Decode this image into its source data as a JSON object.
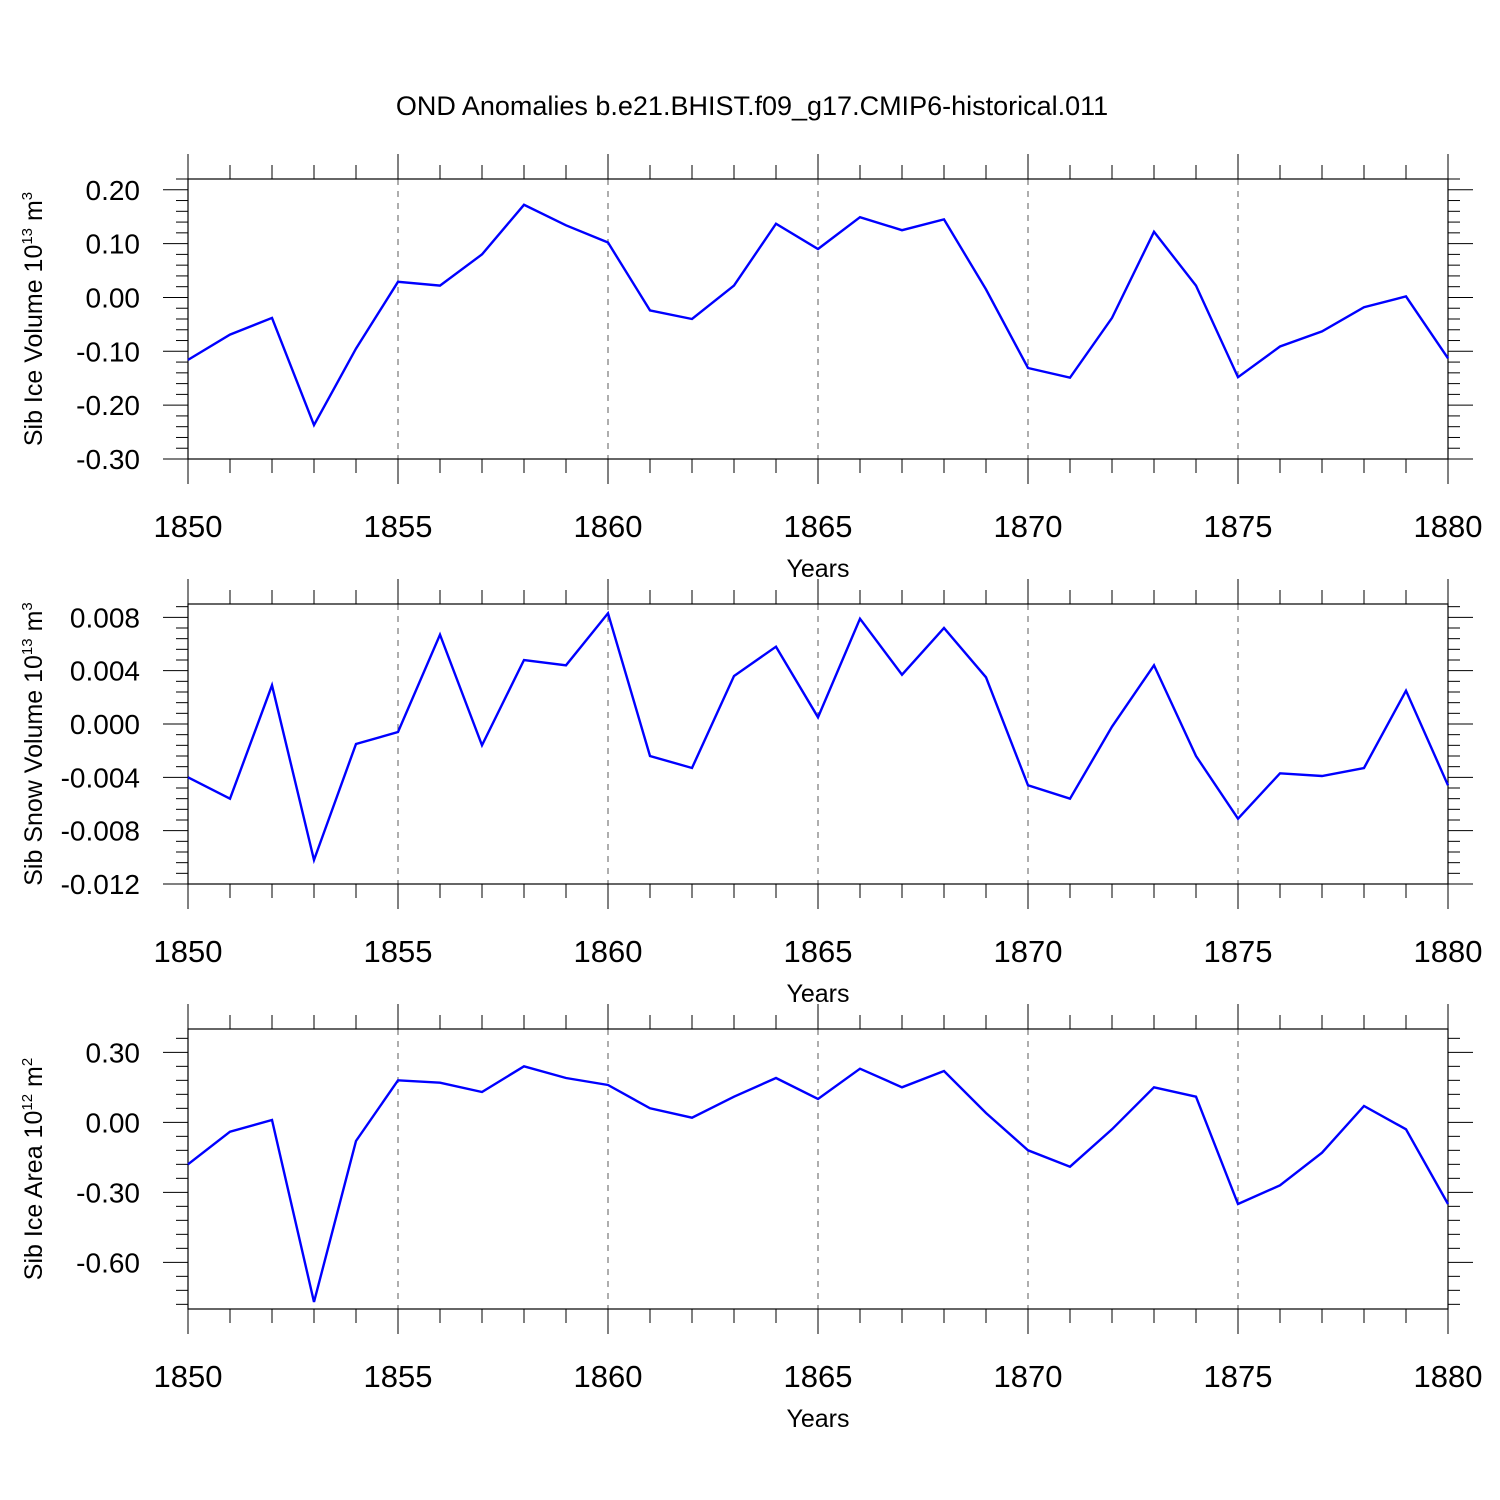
{
  "title": "OND Anomalies b.e21.BHIST.f09_g17.CMIP6-historical.011",
  "colors": {
    "series": "#0000ff",
    "axes": "#000000",
    "background": "#ffffff"
  },
  "chart_data": [
    {
      "type": "line",
      "ylabel": {
        "text": "Sib Ice Volume 10",
        "sup": "13",
        "unit": "m",
        "unit_sup": "3"
      },
      "xlabel": "Years",
      "xlim": [
        1850,
        1880
      ],
      "ylim": [
        -0.3,
        0.22
      ],
      "yticks": [
        0.2,
        0.1,
        0.0,
        -0.1,
        -0.2,
        -0.3
      ],
      "ytick_labels": [
        "0.20",
        "0.10",
        "0.00",
        "-0.10",
        "-0.20",
        "-0.30"
      ],
      "xticks": [
        1850,
        1855,
        1860,
        1865,
        1870,
        1875,
        1880
      ],
      "xtick_labels": [
        "1850",
        "1855",
        "1860",
        "1865",
        "1870",
        "1875",
        "1880"
      ],
      "grid": "vertical dashed at major x ticks",
      "x": [
        1850,
        1851,
        1852,
        1853,
        1854,
        1855,
        1856,
        1857,
        1858,
        1859,
        1860,
        1861,
        1862,
        1863,
        1864,
        1865,
        1866,
        1867,
        1868,
        1869,
        1870,
        1871,
        1872,
        1873,
        1874,
        1875,
        1876,
        1877,
        1878,
        1879,
        1880
      ],
      "series": [
        {
          "values": [
            -0.116,
            -0.069,
            -0.038,
            -0.237,
            -0.095,
            0.029,
            0.022,
            0.08,
            0.172,
            0.134,
            0.102,
            -0.024,
            -0.04,
            0.022,
            0.137,
            0.09,
            0.149,
            0.125,
            0.145,
            0.015,
            -0.131,
            -0.149,
            -0.038,
            0.122,
            0.022,
            -0.148,
            -0.091,
            -0.063,
            -0.018,
            0.002,
            -0.113
          ]
        }
      ]
    },
    {
      "type": "line",
      "ylabel": {
        "text": "Sib Snow Volume 10",
        "sup": "13",
        "unit": "m",
        "unit_sup": "3"
      },
      "xlabel": "Years",
      "xlim": [
        1850,
        1880
      ],
      "ylim": [
        -0.012,
        0.009
      ],
      "yticks": [
        0.008,
        0.004,
        0.0,
        -0.004,
        -0.008,
        -0.012
      ],
      "ytick_labels": [
        "0.008",
        "0.004",
        "0.000",
        "-0.004",
        "-0.008",
        "-0.012"
      ],
      "xticks": [
        1850,
        1855,
        1860,
        1865,
        1870,
        1875,
        1880
      ],
      "xtick_labels": [
        "1850",
        "1855",
        "1860",
        "1865",
        "1870",
        "1875",
        "1880"
      ],
      "grid": "vertical dashed at major x ticks",
      "x": [
        1850,
        1851,
        1852,
        1853,
        1854,
        1855,
        1856,
        1857,
        1858,
        1859,
        1860,
        1861,
        1862,
        1863,
        1864,
        1865,
        1866,
        1867,
        1868,
        1869,
        1870,
        1871,
        1872,
        1873,
        1874,
        1875,
        1876,
        1877,
        1878,
        1879,
        1880
      ],
      "series": [
        {
          "values": [
            -0.004,
            -0.0056,
            0.0029,
            -0.0102,
            -0.0015,
            -0.0006,
            0.0067,
            -0.0016,
            0.0048,
            0.0044,
            0.0083,
            -0.0024,
            -0.0033,
            0.0036,
            0.0058,
            0.0005,
            0.0079,
            0.0037,
            0.0072,
            0.0035,
            -0.0046,
            -0.0056,
            -0.0002,
            0.0044,
            -0.0024,
            -0.0071,
            -0.0037,
            -0.0039,
            -0.0033,
            0.0025,
            -0.0046
          ]
        }
      ]
    },
    {
      "type": "line",
      "ylabel": {
        "text": "Sib Ice Area 10",
        "sup": "12",
        "unit": "m",
        "unit_sup": "2"
      },
      "xlabel": "Years",
      "xlim": [
        1850,
        1880
      ],
      "ylim": [
        -0.8,
        0.4
      ],
      "yticks": [
        0.3,
        0.0,
        -0.3,
        -0.6
      ],
      "ytick_labels": [
        "0.30",
        "0.00",
        "-0.30",
        "-0.60"
      ],
      "xticks": [
        1850,
        1855,
        1860,
        1865,
        1870,
        1875,
        1880
      ],
      "xtick_labels": [
        "1850",
        "1855",
        "1860",
        "1865",
        "1870",
        "1875",
        "1880"
      ],
      "grid": "vertical dashed at major x ticks",
      "x": [
        1850,
        1851,
        1852,
        1853,
        1854,
        1855,
        1856,
        1857,
        1858,
        1859,
        1860,
        1861,
        1862,
        1863,
        1864,
        1865,
        1866,
        1867,
        1868,
        1869,
        1870,
        1871,
        1872,
        1873,
        1874,
        1875,
        1876,
        1877,
        1878,
        1879,
        1880
      ],
      "series": [
        {
          "values": [
            -0.18,
            -0.04,
            0.01,
            -0.77,
            -0.08,
            0.18,
            0.17,
            0.13,
            0.24,
            0.19,
            0.16,
            0.06,
            0.02,
            0.11,
            0.19,
            0.1,
            0.23,
            0.15,
            0.22,
            0.04,
            -0.12,
            -0.19,
            -0.03,
            0.15,
            0.11,
            -0.35,
            -0.27,
            -0.13,
            0.07,
            -0.03,
            -0.35
          ]
        }
      ]
    }
  ]
}
